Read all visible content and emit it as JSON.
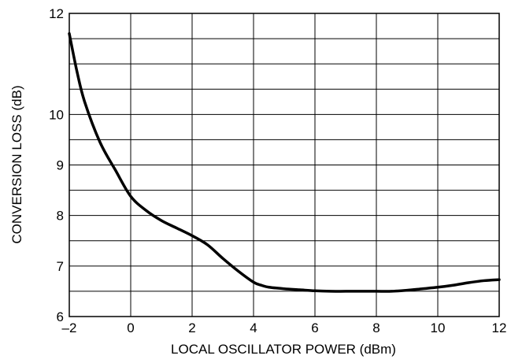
{
  "chart_data": {
    "type": "line",
    "title": "",
    "xlabel": "LOCAL OSCILLATOR POWER (dBm)",
    "ylabel": "CONVERSION LOSS (dB)",
    "xlim": [
      -2,
      12
    ],
    "ylim": [
      6,
      12
    ],
    "x_ticks": [
      -2,
      0,
      2,
      4,
      6,
      8,
      10,
      12
    ],
    "x_tick_labels": [
      "–2",
      "0",
      "2",
      "4",
      "6",
      "8",
      "10",
      "12"
    ],
    "y_tick_labels": [
      {
        "value": 6,
        "label": "6"
      },
      {
        "value": 7,
        "label": "7"
      },
      {
        "value": 8,
        "label": "8"
      },
      {
        "value": 9,
        "label": "9"
      },
      {
        "value": 10,
        "label": "10"
      },
      {
        "value": 12,
        "label": "12"
      }
    ],
    "grid": true,
    "series": [
      {
        "color": "#000000",
        "x": [
          -2.0,
          -1.75,
          -1.5,
          -1.0,
          -0.5,
          0.0,
          0.5,
          1.0,
          1.5,
          2.0,
          2.5,
          3.0,
          3.5,
          4.0,
          4.25,
          4.5,
          5.0,
          5.5,
          6.0,
          6.5,
          7.0,
          7.5,
          8.0,
          8.5,
          9.0,
          9.5,
          10.0,
          10.5,
          11.0,
          11.5,
          12.0
        ],
        "y": [
          11.6,
          10.85,
          10.25,
          9.45,
          8.9,
          8.38,
          8.1,
          7.9,
          7.75,
          7.6,
          7.42,
          7.15,
          6.9,
          6.68,
          6.62,
          6.58,
          6.55,
          6.53,
          6.51,
          6.5,
          6.5,
          6.5,
          6.5,
          6.5,
          6.52,
          6.55,
          6.58,
          6.62,
          6.67,
          6.71,
          6.73
        ]
      }
    ]
  }
}
